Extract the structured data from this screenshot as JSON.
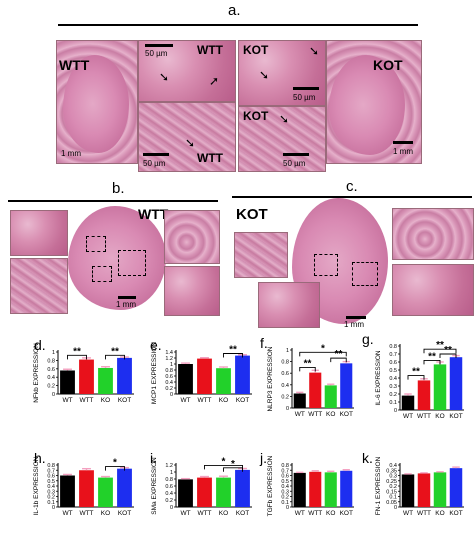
{
  "panels": {
    "a": {
      "label": "a.",
      "tiles": [
        {
          "label": "WTT",
          "scale": "1 mm"
        },
        {
          "label": "WTT",
          "scale": "50 µm"
        },
        {
          "label": "WTT",
          "scale": "50 µm"
        },
        {
          "label": "KOT",
          "scale": "50 µm"
        },
        {
          "label": "KOT",
          "scale": "50 µm"
        },
        {
          "label": "KOT",
          "scale": "1 mm"
        }
      ]
    },
    "b": {
      "label": "b.",
      "tile_label": "WTT",
      "scale": "1 mm"
    },
    "c": {
      "label": "c.",
      "tile_label": "KOT",
      "scale": "1 mm"
    }
  },
  "colors": {
    "wt": "#000000",
    "wtt": "#e8111b",
    "ko": "#22d12a",
    "kot": "#1d2ef0",
    "err": "#f4a0c0",
    "tissue": "#d98ab3"
  },
  "chart_data": [
    {
      "panel": "d.",
      "type": "bar",
      "categories": [
        "WT",
        "WTT",
        "KO",
        "KOT"
      ],
      "values": [
        0.56,
        0.82,
        0.62,
        0.86
      ],
      "errors": [
        0.03,
        0.04,
        0.03,
        0.02
      ],
      "ylabel": "NFkb EXPRESSION",
      "ylim": [
        0,
        1.0
      ],
      "yticks": [
        "0",
        "0.2",
        "0.4",
        "0.6",
        "0.8",
        "1"
      ],
      "sig": [
        {
          "from": 0,
          "to": 1,
          "level": 0.92,
          "text": "**"
        },
        {
          "from": 2,
          "to": 3,
          "level": 0.92,
          "text": "**"
        }
      ]
    },
    {
      "panel": "e.",
      "type": "bar",
      "categories": [
        "WT",
        "WTT",
        "KO",
        "KOT"
      ],
      "values": [
        1.0,
        1.18,
        0.86,
        1.28
      ],
      "errors": [
        0.03,
        0.03,
        0.04,
        0.03
      ],
      "ylabel": "MCP1 EXPRESSION",
      "ylim": [
        0,
        1.4
      ],
      "yticks": [
        "0",
        "0.2",
        "0.4",
        "0.6",
        "0.8",
        "1",
        "1.2",
        "1.4"
      ],
      "sig": [
        {
          "from": 2,
          "to": 3,
          "level": 1.35,
          "text": "**"
        }
      ]
    },
    {
      "panel": "f.",
      "type": "bar",
      "categories": [
        "WT",
        "WTT",
        "KO",
        "KOT"
      ],
      "values": [
        0.25,
        0.61,
        0.39,
        0.77
      ],
      "errors": [
        0.02,
        0.04,
        0.02,
        0.03
      ],
      "ylabel": "NLRP3 EXPRESSION",
      "ylim": [
        0,
        1.0
      ],
      "yticks": [
        "0",
        "0.2",
        "0.4",
        "0.6",
        "0.8",
        "1"
      ],
      "sig": [
        {
          "from": 0,
          "to": 1,
          "level": 0.7,
          "text": "**"
        },
        {
          "from": 2,
          "to": 3,
          "level": 0.86,
          "text": "**"
        },
        {
          "from": 0,
          "to": 3,
          "level": 0.96,
          "text": "*"
        }
      ]
    },
    {
      "panel": "g.",
      "type": "bar",
      "categories": [
        "WT",
        "WTT",
        "KO",
        "KOT"
      ],
      "values": [
        0.18,
        0.37,
        0.57,
        0.66
      ],
      "errors": [
        0.02,
        0.02,
        0.03,
        0.02
      ],
      "ylabel": "IL-6 EXPRESSION",
      "ylim": [
        0,
        0.8
      ],
      "yticks": [
        "0",
        "0.1",
        "0.2",
        "0.3",
        "0.4",
        "0.5",
        "0.6",
        "0.7",
        "0.8"
      ],
      "sig": [
        {
          "from": 0,
          "to": 1,
          "level": 0.43,
          "text": "**"
        },
        {
          "from": 1,
          "to": 2,
          "level": 0.62,
          "text": "**"
        },
        {
          "from": 2,
          "to": 3,
          "level": 0.7,
          "text": "**"
        },
        {
          "from": 1,
          "to": 3,
          "level": 0.76,
          "text": "**"
        }
      ]
    },
    {
      "panel": "h.",
      "type": "bar",
      "categories": [
        "WT",
        "WTT",
        "KO",
        "KOT"
      ],
      "values": [
        0.6,
        0.7,
        0.56,
        0.73
      ],
      "errors": [
        0.02,
        0.03,
        0.02,
        0.02
      ],
      "ylabel": "IL-1b EXPRESSION",
      "ylim": [
        0,
        0.8
      ],
      "yticks": [
        "0",
        "0.1",
        "0.2",
        "0.3",
        "0.4",
        "0.5",
        "0.6",
        "0.7",
        "0.8"
      ],
      "sig": [
        {
          "from": 2,
          "to": 3,
          "level": 0.77,
          "text": "*"
        }
      ]
    },
    {
      "panel": "i.",
      "type": "bar",
      "categories": [
        "WT",
        "WTT",
        "KO",
        "KOT"
      ],
      "values": [
        0.79,
        0.84,
        0.84,
        1.06
      ],
      "errors": [
        0.02,
        0.03,
        0.04,
        0.04
      ],
      "ylabel": "SMa EXPRESSION",
      "ylim": [
        0,
        1.2
      ],
      "yticks": [
        "0",
        "0.2",
        "0.4",
        "0.6",
        "0.8",
        "1",
        "1.2"
      ],
      "sig": [
        {
          "from": 2,
          "to": 3,
          "level": 1.12,
          "text": "*"
        },
        {
          "from": 1,
          "to": 3,
          "level": 1.19,
          "text": "*"
        }
      ]
    },
    {
      "panel": "j.",
      "type": "bar",
      "categories": [
        "WT",
        "WTT",
        "KO",
        "KOT"
      ],
      "values": [
        0.65,
        0.67,
        0.66,
        0.69
      ],
      "errors": [
        0.01,
        0.02,
        0.02,
        0.02
      ],
      "ylabel": "TGFb EXPRESSION",
      "ylim": [
        0,
        0.8
      ],
      "yticks": [
        "0",
        "0.1",
        "0.2",
        "0.3",
        "0.4",
        "0.5",
        "0.6",
        "0.7",
        "0.8"
      ],
      "sig": []
    },
    {
      "panel": "k.",
      "type": "bar",
      "categories": [
        "WT",
        "WTT",
        "KO",
        "KOT"
      ],
      "values": [
        0.31,
        0.32,
        0.33,
        0.37
      ],
      "errors": [
        0.005,
        0.005,
        0.005,
        0.01
      ],
      "ylabel": "FN-1 EXPRESSION",
      "ylim": [
        0,
        0.4
      ],
      "yticks": [
        "0",
        "0.05",
        "0.1",
        "0.15",
        "0.2",
        "0.25",
        "0.3",
        "0.35",
        "0.4"
      ],
      "sig": []
    }
  ]
}
